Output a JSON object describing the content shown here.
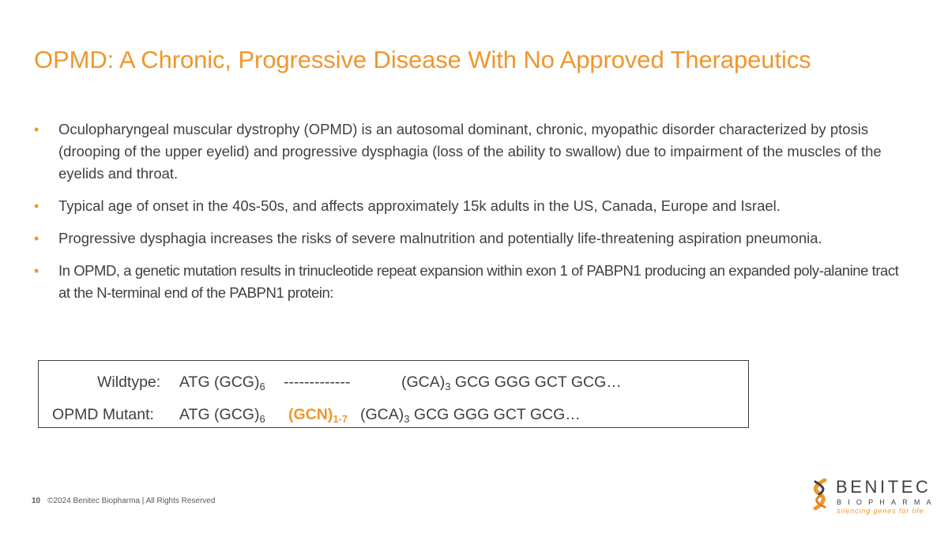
{
  "title": "OPMD: A Chronic, Progressive Disease With No Approved Therapeutics",
  "bullet_marker": "•",
  "bullets": [
    "Oculopharyngeal muscular dystrophy (OPMD) is an autosomal dominant, chronic, myopathic disorder characterized by ptosis (drooping of the upper eyelid) and progressive dysphagia (loss of the ability to swallow) due to impairment of the muscles of the eyelids and throat.",
    "Typical age of onset in the 40s-50s, and affects approximately 15k adults in the US, Canada, Europe and Israel.",
    "Progressive dysphagia increases the risks of severe malnutrition and potentially life-threatening aspiration pneumonia.",
    "In OPMD, a genetic mutation results in trinucleotide repeat expansion within exon 1 of PABPN1 producing an expanded poly-alanine tract at the N-terminal end of the PABPN1 protein:"
  ],
  "sequences": {
    "wildtype": {
      "label": "Wildtype:",
      "start": "ATG (GCG)",
      "start_sub": "6",
      "middle": "-------------",
      "repeat": "(GCA)",
      "repeat_sub": "3",
      "tail": "GCG GGG GCT GCG…"
    },
    "mutant": {
      "label": "OPMD Mutant:",
      "start": "ATG (GCG)",
      "start_sub": "6",
      "insert": "(GCN)",
      "insert_sub": "1-7",
      "repeat": "(GCA)",
      "repeat_sub": "3",
      "tail": "GCG GGG GCT GCG…"
    }
  },
  "footer": {
    "page_number": "10",
    "copyright": "©2024 Benitec Biopharma | All Rights Reserved"
  },
  "logo": {
    "name": "BENITEC",
    "sub": "BIOPHARMA",
    "tagline": "silencing genes for life"
  },
  "colors": {
    "accent": "#F0962D",
    "text": "#404040"
  }
}
